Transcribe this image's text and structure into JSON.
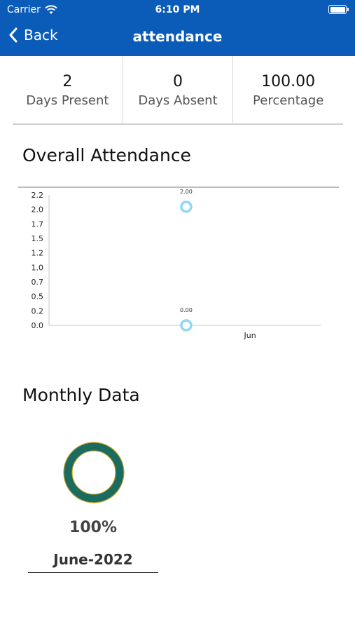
{
  "status_bar": {
    "carrier": "Carrier",
    "time": "6:10 PM"
  },
  "nav": {
    "back_label": "Back",
    "title": "attendance"
  },
  "stats": [
    {
      "value": "2",
      "label": "Days Present"
    },
    {
      "value": "0",
      "label": "Days Absent"
    },
    {
      "value": "100.00",
      "label": "Percentage"
    }
  ],
  "overall_title": "Overall Attendance",
  "monthly_title": "Monthly Data",
  "chart_data": {
    "type": "scatter",
    "categories": [
      "Jun"
    ],
    "series": [
      {
        "values": [
          2.0
        ],
        "labels": [
          "2.00"
        ]
      },
      {
        "values": [
          0.0
        ],
        "labels": [
          "0.00"
        ]
      }
    ],
    "yticks": [
      "0.0",
      "0.2",
      "0.5",
      "0.7",
      "1.0",
      "1.2",
      "1.5",
      "1.7",
      "2.0",
      "2.2"
    ],
    "ylim": [
      0,
      2.2
    ],
    "point_color": "#8fd8f5"
  },
  "monthly": {
    "percent": 100,
    "percent_label": "100%",
    "month": "June-2022",
    "ring_color": "#1a6b60",
    "ring_border": "#d4a017"
  }
}
